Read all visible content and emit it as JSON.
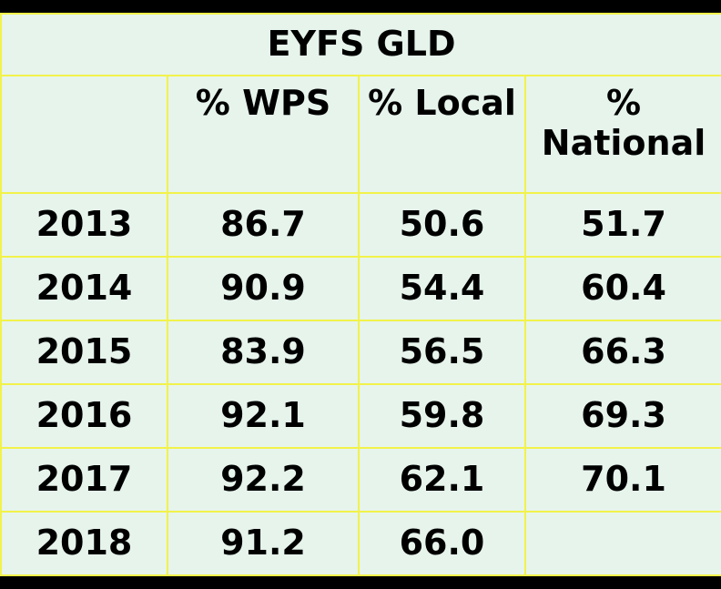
{
  "title": "EYFS GLD",
  "chart_data": {
    "type": "table",
    "title": "EYFS GLD",
    "columns": [
      "",
      "% WPS",
      "% Local",
      "% National"
    ],
    "rows": [
      {
        "year": "2013",
        "wps": "86.7",
        "local": "50.6",
        "national": "51.7"
      },
      {
        "year": "2014",
        "wps": "90.9",
        "local": "54.4",
        "national": "60.4"
      },
      {
        "year": "2015",
        "wps": "83.9",
        "local": "56.5",
        "national": "66.3"
      },
      {
        "year": "2016",
        "wps": "92.1",
        "local": "59.8",
        "national": "69.3"
      },
      {
        "year": "2017",
        "wps": "92.2",
        "local": "62.1",
        "national": "70.1"
      },
      {
        "year": "2018",
        "wps": "91.2",
        "local": "66.0",
        "national": ""
      }
    ]
  },
  "colors": {
    "background": "#000000",
    "cell_fill": "#e6f4ec",
    "grid_line": "#f2f24a",
    "text": "#000000"
  }
}
